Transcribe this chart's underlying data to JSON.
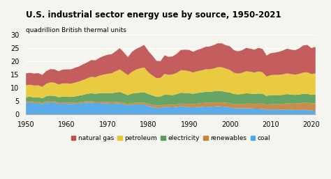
{
  "title": "U.S. industrial sector energy use by source, 1950-2021",
  "ylabel": "quadrillion British thermal units",
  "years": [
    1950,
    1951,
    1952,
    1953,
    1954,
    1955,
    1956,
    1957,
    1958,
    1959,
    1960,
    1961,
    1962,
    1963,
    1964,
    1965,
    1966,
    1967,
    1968,
    1969,
    1970,
    1971,
    1972,
    1973,
    1974,
    1975,
    1976,
    1977,
    1978,
    1979,
    1980,
    1981,
    1982,
    1983,
    1984,
    1985,
    1986,
    1987,
    1988,
    1989,
    1990,
    1991,
    1992,
    1993,
    1994,
    1995,
    1996,
    1997,
    1998,
    1999,
    2000,
    2001,
    2002,
    2003,
    2004,
    2005,
    2006,
    2007,
    2008,
    2009,
    2010,
    2011,
    2012,
    2013,
    2014,
    2015,
    2016,
    2017,
    2018,
    2019,
    2020,
    2021
  ],
  "coal": [
    4.5,
    4.6,
    4.3,
    4.3,
    3.9,
    4.5,
    4.6,
    4.5,
    4.0,
    4.1,
    4.0,
    3.9,
    4.0,
    4.1,
    4.3,
    4.5,
    4.5,
    4.3,
    4.3,
    4.2,
    4.1,
    4.0,
    4.1,
    4.2,
    3.8,
    3.4,
    3.7,
    3.8,
    3.7,
    3.8,
    3.2,
    2.9,
    2.5,
    2.5,
    2.9,
    2.8,
    2.7,
    2.9,
    3.1,
    3.0,
    2.8,
    2.7,
    2.8,
    2.9,
    3.0,
    2.9,
    3.0,
    3.1,
    3.0,
    2.9,
    2.7,
    2.4,
    2.3,
    2.3,
    2.4,
    2.3,
    2.2,
    2.2,
    2.1,
    1.8,
    1.9,
    1.9,
    1.8,
    1.8,
    1.9,
    1.8,
    1.7,
    1.7,
    1.8,
    1.7,
    1.5,
    1.4
  ],
  "renewables": [
    0.5,
    0.5,
    0.5,
    0.5,
    0.5,
    0.5,
    0.5,
    0.5,
    0.5,
    0.5,
    0.5,
    0.5,
    0.5,
    0.5,
    0.5,
    0.5,
    0.5,
    0.5,
    0.5,
    0.5,
    0.6,
    0.6,
    0.6,
    0.6,
    0.6,
    0.6,
    0.6,
    0.6,
    0.7,
    0.7,
    0.8,
    0.8,
    0.9,
    0.9,
    0.9,
    0.9,
    0.9,
    0.9,
    1.0,
    1.0,
    1.2,
    1.2,
    1.3,
    1.4,
    1.4,
    1.5,
    1.5,
    1.5,
    1.5,
    1.5,
    1.6,
    1.5,
    1.5,
    1.6,
    1.7,
    1.8,
    1.8,
    1.9,
    2.0,
    1.9,
    2.0,
    2.0,
    2.1,
    2.2,
    2.3,
    2.3,
    2.4,
    2.5,
    2.6,
    2.7,
    2.7,
    2.8
  ],
  "electricity": [
    1.5,
    1.6,
    1.6,
    1.7,
    1.7,
    1.9,
    2.0,
    2.0,
    2.0,
    2.1,
    2.2,
    2.2,
    2.3,
    2.5,
    2.6,
    2.8,
    3.0,
    3.0,
    3.2,
    3.3,
    3.4,
    3.4,
    3.6,
    3.7,
    3.5,
    3.3,
    3.6,
    3.7,
    3.8,
    3.9,
    3.7,
    3.5,
    3.3,
    3.4,
    3.7,
    3.7,
    3.7,
    3.9,
    4.1,
    4.1,
    4.0,
    3.9,
    4.0,
    4.0,
    4.1,
    4.1,
    4.2,
    4.3,
    4.3,
    4.1,
    4.0,
    3.8,
    3.8,
    3.8,
    3.9,
    3.8,
    3.7,
    3.8,
    3.7,
    3.3,
    3.4,
    3.4,
    3.4,
    3.4,
    3.5,
    3.4,
    3.3,
    3.3,
    3.4,
    3.4,
    3.2,
    3.3
  ],
  "petroleum": [
    4.5,
    4.5,
    4.5,
    4.5,
    4.3,
    4.7,
    5.0,
    5.0,
    4.8,
    5.0,
    5.0,
    5.0,
    5.2,
    5.3,
    5.6,
    5.8,
    6.2,
    6.2,
    6.6,
    7.0,
    7.2,
    7.5,
    8.0,
    8.5,
    8.0,
    7.5,
    8.2,
    8.8,
    9.2,
    9.3,
    8.2,
    7.5,
    7.0,
    7.0,
    7.8,
    7.5,
    7.8,
    8.0,
    8.5,
    8.5,
    8.3,
    8.0,
    8.2,
    8.3,
    8.5,
    8.5,
    8.6,
    8.9,
    9.0,
    8.8,
    8.5,
    8.0,
    7.8,
    8.0,
    8.3,
    8.2,
    8.1,
    8.3,
    8.1,
    7.3,
    7.5,
    7.6,
    7.6,
    7.7,
    7.8,
    7.7,
    7.6,
    7.8,
    8.0,
    8.1,
    7.8,
    8.0
  ],
  "natural_gas": [
    4.5,
    4.5,
    4.5,
    4.6,
    4.5,
    4.8,
    5.0,
    5.0,
    5.0,
    5.2,
    5.3,
    5.4,
    5.6,
    5.7,
    5.9,
    6.0,
    6.3,
    6.4,
    6.7,
    7.0,
    7.2,
    7.2,
    7.5,
    8.0,
    7.5,
    6.8,
    7.5,
    7.8,
    8.0,
    8.5,
    8.0,
    7.5,
    6.5,
    6.3,
    7.0,
    6.8,
    6.8,
    7.2,
    7.6,
    7.8,
    8.0,
    7.8,
    8.0,
    8.2,
    8.5,
    8.6,
    8.8,
    9.0,
    9.0,
    8.8,
    8.9,
    8.5,
    8.4,
    8.5,
    8.8,
    8.7,
    8.6,
    8.9,
    8.8,
    7.9,
    8.3,
    8.4,
    8.7,
    9.0,
    9.3,
    9.2,
    9.2,
    9.6,
    10.2,
    10.3,
    9.8,
    10.0
  ],
  "colors": {
    "coal": "#4da6e8",
    "renewables": "#c8823c",
    "electricity": "#5a9e5a",
    "petroleum": "#e8c832",
    "natural_gas": "#c05050"
  },
  "ylim": [
    0,
    30
  ],
  "yticks": [
    0,
    5,
    10,
    15,
    20,
    25,
    30
  ],
  "xticks": [
    1950,
    1960,
    1970,
    1980,
    1990,
    2000,
    2010,
    2020
  ],
  "background_color": "#f5f5f0"
}
